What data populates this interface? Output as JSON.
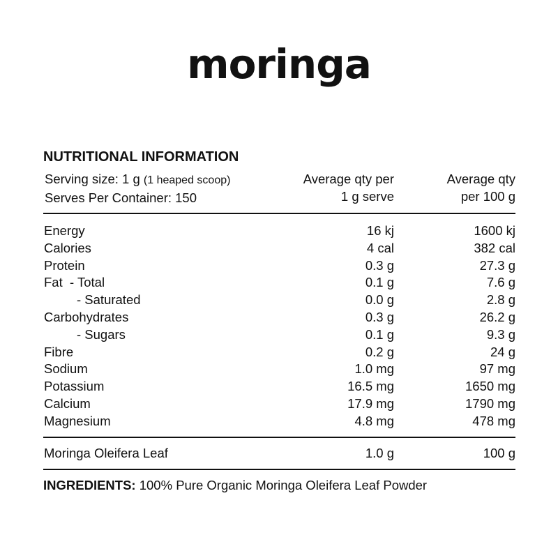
{
  "brand": "moringa",
  "title": "NUTRITIONAL INFORMATION",
  "serving": {
    "size_label": "Serving size: 1 g",
    "size_note": "(1 heaped scoop)",
    "per_container": "Serves Per Container: 150"
  },
  "columns": {
    "per_serve": [
      "Average qty per",
      "1 g serve"
    ],
    "per_100g": [
      "Average qty",
      "per 100 g"
    ]
  },
  "rows": [
    {
      "name": "Energy",
      "per_serve": "16 kj",
      "per_100g": "1600 kj",
      "indent": false
    },
    {
      "name": "Calories",
      "per_serve": "4 cal",
      "per_100g": "382 cal",
      "indent": false
    },
    {
      "name": "Protein",
      "per_serve": "0.3 g",
      "per_100g": "27.3 g",
      "indent": false
    },
    {
      "name": "Fat  - Total",
      "per_serve": "0.1 g",
      "per_100g": "7.6 g",
      "indent": false
    },
    {
      "name": "- Saturated",
      "per_serve": "0.0 g",
      "per_100g": "2.8 g",
      "indent": true
    },
    {
      "name": "Carbohydrates",
      "per_serve": "0.3 g",
      "per_100g": "26.2 g",
      "indent": false
    },
    {
      "name": "- Sugars",
      "per_serve": "0.1 g",
      "per_100g": "9.3 g",
      "indent": true
    },
    {
      "name": "Fibre",
      "per_serve": "0.2 g",
      "per_100g": "24 g",
      "indent": false
    },
    {
      "name": "Sodium",
      "per_serve": "1.0 mg",
      "per_100g": "97 mg",
      "indent": false
    },
    {
      "name": "Potassium",
      "per_serve": "16.5 mg",
      "per_100g": "1650 mg",
      "indent": false
    },
    {
      "name": "Calcium",
      "per_serve": "17.9 mg",
      "per_100g": "1790 mg",
      "indent": false
    },
    {
      "name": "Magnesium",
      "per_serve": "4.8 mg",
      "per_100g": "478 mg",
      "indent": false
    }
  ],
  "ingredient_row": {
    "name": "Moringa Oleifera Leaf",
    "per_serve": "1.0 g",
    "per_100g": "100 g"
  },
  "ingredients": {
    "label": "INGREDIENTS:",
    "text": " 100% Pure Organic Moringa Oleifera Leaf Powder"
  }
}
